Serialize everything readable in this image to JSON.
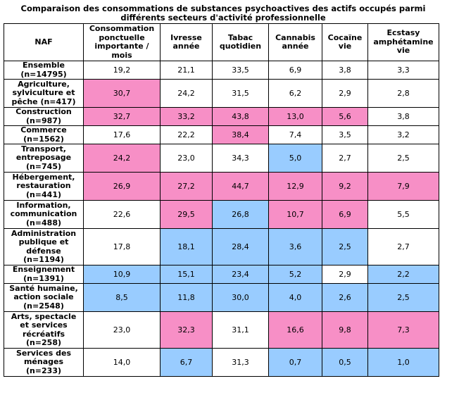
{
  "title_line1": "Comparaison des consommations de substances psychoactives des actifs occupés parmi",
  "title_line2": "différents secteurs d'activité professionnelle",
  "colors": {
    "high": "#f78fc6",
    "low": "#99ccff",
    "neutral": "#ffffff"
  },
  "columns": [
    "NAF",
    "Consommation ponctuelle importante / mois",
    "Ivresse année",
    "Tabac quotidien",
    "Cannabis année",
    "Cocaïne vie",
    "Ecstasy amphétamine vie"
  ],
  "rows": [
    {
      "sector": "Ensemble (n=14795)",
      "values": [
        "19,2",
        "21,1",
        "33,5",
        "6,9",
        "3,8",
        "3,3"
      ],
      "status": [
        "n",
        "n",
        "n",
        "n",
        "n",
        "n"
      ]
    },
    {
      "sector": "Agriculture, sylviculture et pêche (n=417)",
      "values": [
        "30,7",
        "24,2",
        "31,5",
        "6,2",
        "2,9",
        "2,8"
      ],
      "status": [
        "h",
        "n",
        "n",
        "n",
        "n",
        "n"
      ]
    },
    {
      "sector": "Construction (n=987)",
      "values": [
        "32,7",
        "33,2",
        "43,8",
        "13,0",
        "5,6",
        "3,8"
      ],
      "status": [
        "h",
        "h",
        "h",
        "h",
        "h",
        "n"
      ]
    },
    {
      "sector": "Commerce (n=1562)",
      "values": [
        "17,6",
        "22,2",
        "38,4",
        "7,4",
        "3,5",
        "3,2"
      ],
      "status": [
        "n",
        "n",
        "h",
        "n",
        "n",
        "n"
      ]
    },
    {
      "sector": "Transport, entreposage (n=745)",
      "values": [
        "24,2",
        "23,0",
        "34,3",
        "5,0",
        "2,7",
        "2,5"
      ],
      "status": [
        "h",
        "n",
        "n",
        "l",
        "n",
        "n"
      ]
    },
    {
      "sector": "Hébergement, restauration (n=441)",
      "values": [
        "26,9",
        "27,2",
        "44,7",
        "12,9",
        "9,2",
        "7,9"
      ],
      "status": [
        "h",
        "h",
        "h",
        "h",
        "h",
        "h"
      ]
    },
    {
      "sector": "Information, communication (n=488)",
      "values": [
        "22,6",
        "29,5",
        "26,8",
        "10,7",
        "6,9",
        "5,5"
      ],
      "status": [
        "n",
        "h",
        "l",
        "h",
        "h",
        "n"
      ]
    },
    {
      "sector": "Administration publique et défense (n=1194)",
      "values": [
        "17,8",
        "18,1",
        "28,4",
        "3,6",
        "2,5",
        "2,7"
      ],
      "status": [
        "n",
        "l",
        "l",
        "l",
        "l",
        "n"
      ]
    },
    {
      "sector": "Enseignement (n=1391)",
      "values": [
        "10,9",
        "15,1",
        "23,4",
        "5,2",
        "2,9",
        "2,2"
      ],
      "status": [
        "l",
        "l",
        "l",
        "l",
        "n",
        "l"
      ]
    },
    {
      "sector": "Santé humaine, action sociale (n=2548)",
      "values": [
        "8,5",
        "11,8",
        "30,0",
        "4,0",
        "2,6",
        "2,5"
      ],
      "status": [
        "l",
        "l",
        "l",
        "l",
        "l",
        "l"
      ]
    },
    {
      "sector": "Arts, spectacle et services récréatifs (n=258)",
      "values": [
        "23,0",
        "32,3",
        "31,1",
        "16,6",
        "9,8",
        "7,3"
      ],
      "status": [
        "n",
        "h",
        "n",
        "h",
        "h",
        "h"
      ]
    },
    {
      "sector": "Services des ménages (n=233)",
      "values": [
        "14,0",
        "6,7",
        "31,3",
        "0,7",
        "0,5",
        "1,0"
      ],
      "status": [
        "n",
        "l",
        "n",
        "l",
        "l",
        "l"
      ]
    }
  ]
}
